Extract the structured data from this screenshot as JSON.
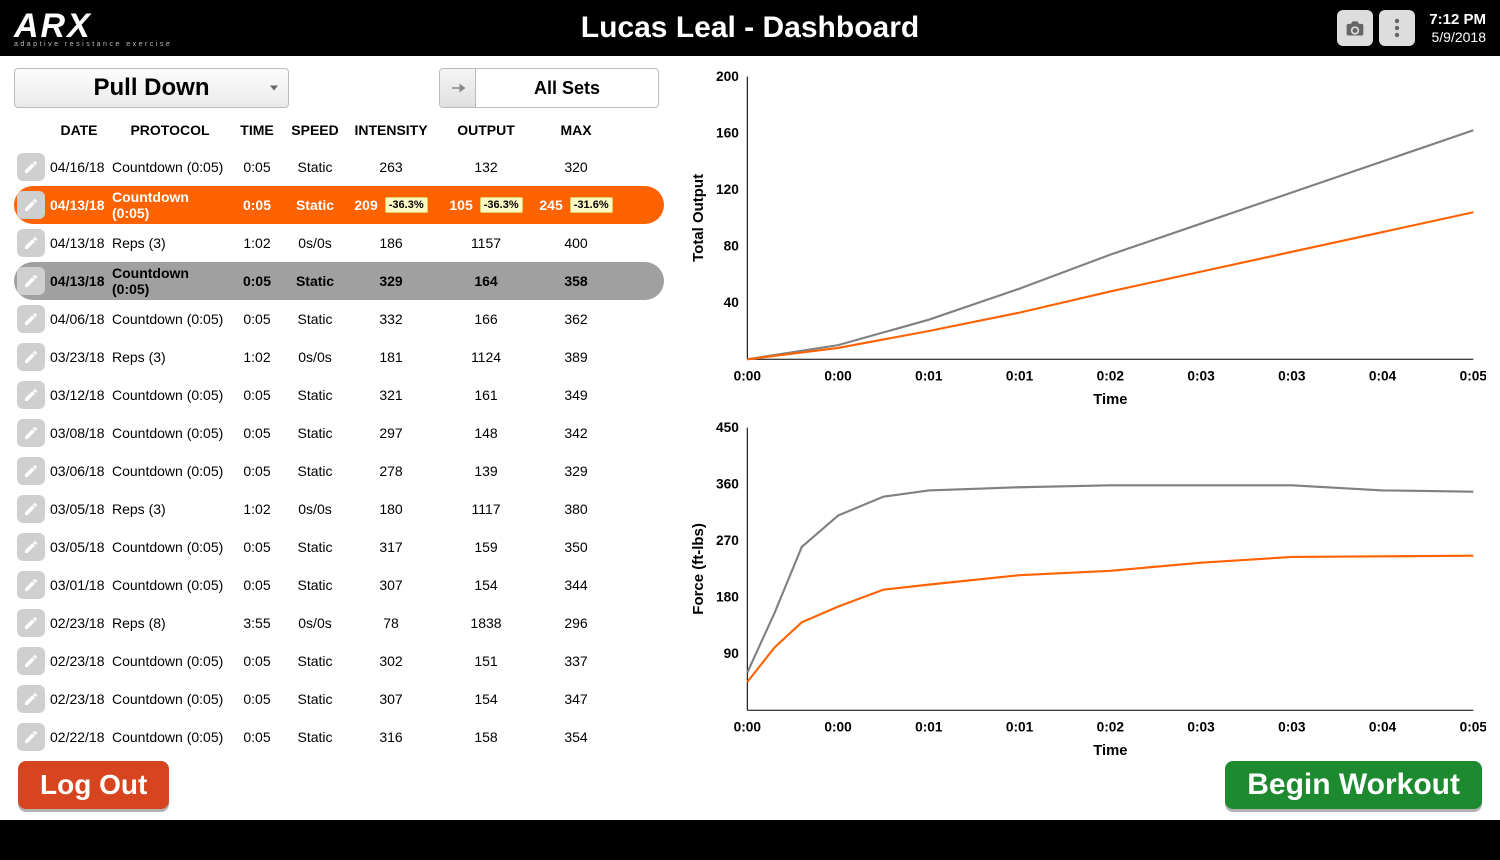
{
  "header": {
    "logo_main": "ARX",
    "logo_sub": "adaptive resistance exercise",
    "title": "Lucas Leal - Dashboard",
    "time": "7:12 PM",
    "date": "5/9/2018"
  },
  "controls": {
    "exercise_dropdown": "Pull Down",
    "set_filter": "All Sets"
  },
  "table": {
    "columns": [
      "DATE",
      "PROTOCOL",
      "TIME",
      "SPEED",
      "INTENSITY",
      "OUTPUT",
      "MAX"
    ],
    "rows": [
      {
        "date": "04/16/18",
        "protocol": "Countdown (0:05)",
        "time": "0:05",
        "speed": "Static",
        "intensity": "263",
        "output": "132",
        "max": "320",
        "state": "normal"
      },
      {
        "date": "04/13/18",
        "protocol": "Countdown (0:05)",
        "time": "0:05",
        "speed": "Static",
        "intensity": "209",
        "intensity_delta": "-36.3%",
        "output": "105",
        "output_delta": "-36.3%",
        "max": "245",
        "max_delta": "-31.6%",
        "state": "selected"
      },
      {
        "date": "04/13/18",
        "protocol": "Reps (3)",
        "time": "1:02",
        "speed": "0s/0s",
        "intensity": "186",
        "output": "1157",
        "max": "400",
        "state": "normal"
      },
      {
        "date": "04/13/18",
        "protocol": "Countdown (0:05)",
        "time": "0:05",
        "speed": "Static",
        "intensity": "329",
        "output": "164",
        "max": "358",
        "state": "compare"
      },
      {
        "date": "04/06/18",
        "protocol": "Countdown (0:05)",
        "time": "0:05",
        "speed": "Static",
        "intensity": "332",
        "output": "166",
        "max": "362",
        "state": "normal"
      },
      {
        "date": "03/23/18",
        "protocol": "Reps (3)",
        "time": "1:02",
        "speed": "0s/0s",
        "intensity": "181",
        "output": "1124",
        "max": "389",
        "state": "normal"
      },
      {
        "date": "03/12/18",
        "protocol": "Countdown (0:05)",
        "time": "0:05",
        "speed": "Static",
        "intensity": "321",
        "output": "161",
        "max": "349",
        "state": "normal"
      },
      {
        "date": "03/08/18",
        "protocol": "Countdown (0:05)",
        "time": "0:05",
        "speed": "Static",
        "intensity": "297",
        "output": "148",
        "max": "342",
        "state": "normal"
      },
      {
        "date": "03/06/18",
        "protocol": "Countdown (0:05)",
        "time": "0:05",
        "speed": "Static",
        "intensity": "278",
        "output": "139",
        "max": "329",
        "state": "normal"
      },
      {
        "date": "03/05/18",
        "protocol": "Reps (3)",
        "time": "1:02",
        "speed": "0s/0s",
        "intensity": "180",
        "output": "1117",
        "max": "380",
        "state": "normal"
      },
      {
        "date": "03/05/18",
        "protocol": "Countdown (0:05)",
        "time": "0:05",
        "speed": "Static",
        "intensity": "317",
        "output": "159",
        "max": "350",
        "state": "normal"
      },
      {
        "date": "03/01/18",
        "protocol": "Countdown (0:05)",
        "time": "0:05",
        "speed": "Static",
        "intensity": "307",
        "output": "154",
        "max": "344",
        "state": "normal"
      },
      {
        "date": "02/23/18",
        "protocol": "Reps (8)",
        "time": "3:55",
        "speed": "0s/0s",
        "intensity": "78",
        "output": "1838",
        "max": "296",
        "state": "normal"
      },
      {
        "date": "02/23/18",
        "protocol": "Countdown (0:05)",
        "time": "0:05",
        "speed": "Static",
        "intensity": "302",
        "output": "151",
        "max": "337",
        "state": "normal"
      },
      {
        "date": "02/23/18",
        "protocol": "Countdown (0:05)",
        "time": "0:05",
        "speed": "Static",
        "intensity": "307",
        "output": "154",
        "max": "347",
        "state": "normal"
      },
      {
        "date": "02/22/18",
        "protocol": "Countdown (0:05)",
        "time": "0:05",
        "speed": "Static",
        "intensity": "316",
        "output": "158",
        "max": "354",
        "state": "normal"
      }
    ]
  },
  "charts": {
    "top": {
      "type": "line",
      "ylabel": "Total Output",
      "xlabel": "Time",
      "ylim": [
        0,
        200
      ],
      "yticks": [
        40,
        80,
        120,
        160,
        200
      ],
      "xticks": [
        "0:00",
        "0:00",
        "0:01",
        "0:01",
        "0:02",
        "0:03",
        "0:03",
        "0:04",
        "0:05"
      ],
      "series": [
        {
          "name": "compare",
          "color": "#808080",
          "width": 2,
          "points": [
            [
              0,
              0
            ],
            [
              1,
              10
            ],
            [
              2,
              28
            ],
            [
              3,
              50
            ],
            [
              4,
              74
            ],
            [
              5,
              96
            ],
            [
              6,
              118
            ],
            [
              7,
              140
            ],
            [
              8,
              162
            ]
          ]
        },
        {
          "name": "selected",
          "color": "#ff6200",
          "width": 2,
          "points": [
            [
              0,
              0
            ],
            [
              1,
              8
            ],
            [
              2,
              20
            ],
            [
              3,
              33
            ],
            [
              4,
              48
            ],
            [
              5,
              62
            ],
            [
              6,
              76
            ],
            [
              7,
              90
            ],
            [
              8,
              104
            ]
          ]
        }
      ]
    },
    "bottom": {
      "type": "line",
      "ylabel": "Force (ft-lbs)",
      "xlabel": "Time",
      "ylim": [
        0,
        450
      ],
      "yticks": [
        90,
        180,
        270,
        360,
        450
      ],
      "xticks": [
        "0:00",
        "0:00",
        "0:01",
        "0:01",
        "0:02",
        "0:03",
        "0:03",
        "0:04",
        "0:05"
      ],
      "series": [
        {
          "name": "compare",
          "color": "#808080",
          "width": 2,
          "points": [
            [
              0,
              60
            ],
            [
              0.3,
              155
            ],
            [
              0.6,
              260
            ],
            [
              1,
              310
            ],
            [
              1.5,
              340
            ],
            [
              2,
              350
            ],
            [
              3,
              355
            ],
            [
              4,
              358
            ],
            [
              5,
              358
            ],
            [
              6,
              358
            ],
            [
              7,
              350
            ],
            [
              8,
              348
            ]
          ]
        },
        {
          "name": "selected",
          "color": "#ff6200",
          "width": 2,
          "points": [
            [
              0,
              45
            ],
            [
              0.3,
              100
            ],
            [
              0.6,
              140
            ],
            [
              1,
              165
            ],
            [
              1.5,
              192
            ],
            [
              2,
              200
            ],
            [
              3,
              215
            ],
            [
              4,
              222
            ],
            [
              5,
              235
            ],
            [
              6,
              244
            ],
            [
              7,
              245
            ],
            [
              8,
              246
            ]
          ]
        }
      ]
    }
  },
  "footer": {
    "logout_label": "Log Out",
    "begin_label": "Begin Workout"
  },
  "colors": {
    "selected_row": "#ff6200",
    "compare_row": "#a0a0a0",
    "logout_btn": "#d64520",
    "begin_btn": "#1e8a2f",
    "delta_badge_bg": "#fff9c4"
  }
}
